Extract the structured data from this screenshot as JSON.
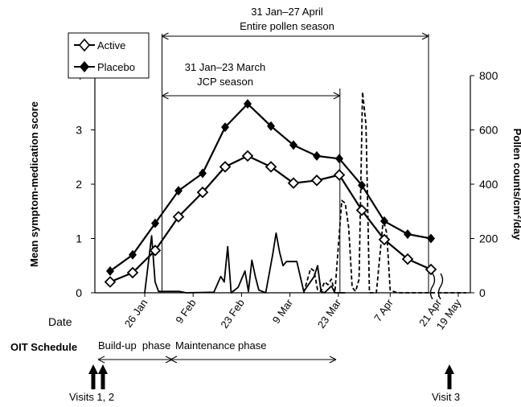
{
  "chart_data": {
    "type": "line",
    "xlabel": "Date",
    "ylabel_left": "Mean symptom-medication score",
    "ylabel_right_main": "Pollen counts/cm",
    "ylabel_right_sup": "2",
    "ylabel_right_tail": "/day",
    "y_left_ticks": [
      "0",
      "1",
      "2",
      "3",
      "4"
    ],
    "y_right_ticks": [
      "0",
      "200",
      "400",
      "600",
      "800"
    ],
    "ylim_left": [
      0,
      4
    ],
    "ylim_right": [
      0,
      800
    ],
    "x_ticks": [
      "26 Jan",
      "9 Feb",
      "23 Feb",
      "9 Mar",
      "23 Mar",
      "7 Apr",
      "21 Apr",
      "19 May"
    ],
    "x_tick_days": [
      26,
      40,
      54,
      68,
      82,
      97,
      111,
      139
    ],
    "x_range_days": [
      -1,
      143
    ],
    "x_axis_break": "between 21 Apr and 19 May",
    "legend": {
      "active": "Active",
      "placebo": "Placebo",
      "placement": "top-left"
    },
    "series": [
      {
        "name": "Active",
        "marker": "open-diamond",
        "x_days": [
          5,
          16,
          28,
          40,
          51,
          63,
          75,
          87,
          99,
          110,
          122,
          133,
          146,
          159,
          172,
          185
        ],
        "x_days_note": "",
        "values": [
          0.2,
          0.37,
          0.78,
          1.4,
          1.85,
          2.32,
          2.52,
          2.32,
          2.02,
          2.07,
          2.17,
          1.52,
          0.98,
          0.62,
          0.43,
          0.43
        ]
      },
      {
        "name": "Placebo",
        "marker": "filled-diamond",
        "values": [
          0.4,
          0.7,
          1.28,
          1.88,
          2.2,
          3.05,
          3.48,
          3.07,
          2.72,
          2.52,
          2.47,
          1.98,
          1.32,
          1.08,
          1.0
        ]
      }
    ],
    "x_dates_days": [
      11,
      16,
      21,
      26,
      34,
      40,
      47,
      54,
      61,
      68,
      75,
      82,
      85,
      97,
      104,
      111,
      116
    ],
    "symptom_dates": [
      "11 Jan",
      "16 Jan",
      "26 Jan",
      "5 Feb",
      "11 Feb",
      "20 Feb",
      "26 Feb",
      "4 Mar",
      "11 Mar",
      "18 Mar",
      "25 Mar",
      "1 Apr",
      "8 Apr",
      "15 Apr",
      "22 Apr",
      "30 Apr"
    ],
    "pollen_jcp": {
      "style": "solid",
      "points": [
        [
          26,
          0
        ],
        [
          28,
          210
        ],
        [
          29,
          40
        ],
        [
          30,
          5
        ],
        [
          36,
          5
        ],
        [
          38,
          0
        ],
        [
          46,
          2
        ],
        [
          48,
          60
        ],
        [
          49,
          40
        ],
        [
          50,
          170
        ],
        [
          51,
          0
        ],
        [
          53,
          20
        ],
        [
          55,
          80
        ],
        [
          56,
          5
        ],
        [
          57,
          120
        ],
        [
          58,
          60
        ],
        [
          59,
          10
        ],
        [
          61,
          0
        ],
        [
          63,
          140
        ],
        [
          64,
          220
        ],
        [
          65,
          150
        ],
        [
          66,
          100
        ],
        [
          67,
          115
        ],
        [
          70,
          115
        ],
        [
          72,
          5
        ],
        [
          75,
          60
        ],
        [
          76,
          100
        ],
        [
          77,
          5
        ],
        [
          78,
          0
        ],
        [
          80,
          25
        ],
        [
          81,
          0
        ],
        [
          84,
          0
        ]
      ]
    },
    "pollen_cypress": {
      "style": "dashed",
      "points": [
        [
          72,
          0
        ],
        [
          74,
          90
        ],
        [
          75,
          80
        ],
        [
          76,
          10
        ],
        [
          77,
          5
        ],
        [
          78,
          40
        ],
        [
          79,
          30
        ],
        [
          80,
          50
        ],
        [
          81,
          0
        ],
        [
          83,
          340
        ],
        [
          84,
          330
        ],
        [
          85,
          240
        ],
        [
          86,
          20
        ],
        [
          87,
          5
        ],
        [
          88,
          50
        ],
        [
          89,
          740
        ],
        [
          90,
          620
        ],
        [
          91,
          0
        ],
        [
          93,
          0
        ],
        [
          95,
          270
        ],
        [
          96,
          220
        ],
        [
          97,
          10
        ],
        [
          99,
          0
        ],
        [
          119,
          0
        ]
      ]
    },
    "season_brackets": [
      {
        "label_line1": "31 Jan–27 April",
        "label_line2": "Entire pollen season",
        "start_day": 31,
        "end_day": 117
      },
      {
        "label_line1": "31 Jan–23 March",
        "label_line2": "JCP season",
        "start_day": 31,
        "end_day": 82
      }
    ]
  },
  "oit": {
    "title": "OIT Schedule",
    "phases": [
      {
        "label": "Build-up  phase",
        "start_day": 31,
        "end_day": 47
      },
      {
        "label": "Maintenance phase",
        "start_day": 47,
        "end_day": 95
      }
    ],
    "visits": [
      {
        "label": "Visits 1, 2",
        "day_offsets": [
          10,
          14
        ]
      },
      {
        "label": "Visit 3",
        "day_offsets": [
          139
        ]
      }
    ]
  }
}
